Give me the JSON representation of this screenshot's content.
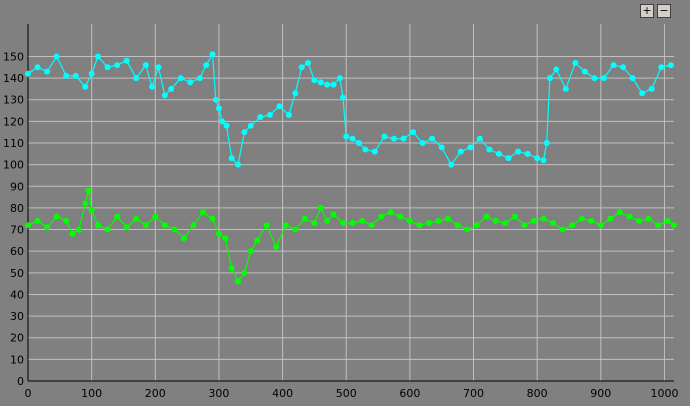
{
  "toolbar": {
    "zoom_in_label": "+",
    "zoom_out_label": "−"
  },
  "chart_data": {
    "type": "line",
    "title": "",
    "xlabel": "",
    "ylabel": "",
    "xlim": [
      0,
      1015
    ],
    "ylim": [
      0,
      165
    ],
    "x_ticks": [
      0,
      100,
      200,
      300,
      400,
      500,
      600,
      700,
      800,
      900,
      1000
    ],
    "y_ticks": [
      0,
      10,
      20,
      30,
      40,
      50,
      60,
      70,
      80,
      90,
      100,
      110,
      120,
      130,
      140,
      150
    ],
    "grid": true,
    "background": "#808080",
    "grid_color": "#c0c0c0",
    "series": [
      {
        "color": "#00ffff",
        "x": [
          0,
          15,
          30,
          45,
          60,
          75,
          90,
          100,
          110,
          125,
          140,
          155,
          170,
          185,
          195,
          205,
          215,
          225,
          240,
          255,
          270,
          280,
          290,
          295,
          300,
          305,
          312,
          320,
          330,
          340,
          350,
          365,
          380,
          395,
          410,
          420,
          430,
          440,
          450,
          460,
          470,
          480,
          490,
          495,
          500,
          510,
          520,
          530,
          545,
          560,
          575,
          590,
          605,
          620,
          635,
          650,
          665,
          680,
          695,
          710,
          725,
          740,
          755,
          770,
          785,
          800,
          810,
          815,
          820,
          830,
          845,
          860,
          875,
          890,
          905,
          920,
          935,
          950,
          965,
          980,
          995,
          1010
        ],
        "values": [
          142,
          145,
          143,
          150,
          141,
          141,
          136,
          142,
          150,
          145,
          146,
          148,
          140,
          146,
          136,
          145,
          132,
          135,
          140,
          138,
          140,
          146,
          151,
          130,
          126,
          120,
          118,
          103,
          100,
          115,
          118,
          122,
          123,
          127,
          123,
          133,
          145,
          147,
          139,
          138,
          137,
          137,
          140,
          131,
          113,
          112,
          110,
          107,
          106,
          113,
          112,
          112,
          115,
          110,
          112,
          108,
          100,
          106,
          108,
          112,
          107,
          105,
          103,
          106,
          105,
          103,
          102,
          110,
          140,
          144,
          135,
          147,
          143,
          140,
          140,
          146,
          145,
          140,
          133,
          135,
          145,
          146
        ]
      },
      {
        "color": "#00ff00",
        "x": [
          0,
          15,
          30,
          45,
          60,
          70,
          80,
          90,
          95,
          100,
          110,
          125,
          140,
          155,
          170,
          185,
          200,
          215,
          230,
          245,
          260,
          275,
          290,
          300,
          310,
          320,
          330,
          340,
          350,
          360,
          375,
          390,
          405,
          420,
          435,
          450,
          460,
          470,
          480,
          495,
          510,
          525,
          540,
          555,
          570,
          585,
          600,
          615,
          630,
          645,
          660,
          675,
          690,
          705,
          720,
          735,
          750,
          765,
          780,
          795,
          810,
          825,
          840,
          855,
          870,
          885,
          900,
          915,
          930,
          945,
          960,
          975,
          990,
          1005,
          1015
        ],
        "values": [
          72,
          74,
          71,
          76,
          74,
          68,
          70,
          82,
          88,
          79,
          72,
          70,
          76,
          71,
          75,
          72,
          76,
          72,
          70,
          66,
          72,
          78,
          75,
          68,
          66,
          52,
          46,
          50,
          60,
          65,
          72,
          62,
          72,
          70,
          75,
          73,
          80,
          74,
          77,
          73,
          73,
          74,
          72,
          76,
          78,
          76,
          74,
          72,
          73,
          74,
          75,
          72,
          70,
          72,
          76,
          74,
          73,
          76,
          72,
          74,
          75,
          73,
          70,
          72,
          75,
          74,
          72,
          75,
          78,
          76,
          74,
          75,
          72,
          74,
          72
        ]
      }
    ]
  }
}
